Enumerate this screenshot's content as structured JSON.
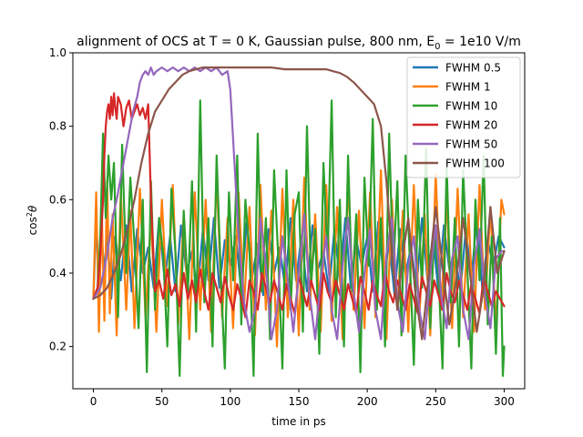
{
  "chart_data": {
    "type": "line",
    "title": "alignment of OCS at T = 0 K, Gaussian pulse, 800 nm, E",
    "title_subscript": "0",
    "title_suffix": " = 1e10 V/m",
    "xlabel": "time in ps",
    "ylabel": "cos",
    "ylabel_superscript": "2",
    "ylabel_symbol": "θ",
    "xlim": [
      -15,
      315
    ],
    "ylim": [
      0.085,
      1.0
    ],
    "xticks": [
      0,
      50,
      100,
      150,
      200,
      250,
      300
    ],
    "yticks": [
      0.2,
      0.4,
      0.6,
      0.8,
      1.0
    ],
    "xtick_labels": [
      "0",
      "50",
      "100",
      "150",
      "200",
      "250",
      "300"
    ],
    "ytick_labels": [
      "0.2",
      "0.4",
      "0.6",
      "0.8",
      "1.0"
    ],
    "grid": false,
    "legend_position": "top-right",
    "series": [
      {
        "name": "FWHM 0.5",
        "color": "#1f77b4",
        "x": [
          0,
          2,
          4,
          6,
          8,
          10,
          13,
          16,
          20,
          24,
          28,
          32,
          36,
          40,
          44,
          48,
          52,
          56,
          60,
          64,
          68,
          72,
          76,
          80,
          84,
          88,
          92,
          96,
          100,
          104,
          108,
          112,
          116,
          120,
          124,
          128,
          132,
          136,
          140,
          144,
          148,
          152,
          156,
          160,
          164,
          168,
          172,
          176,
          180,
          184,
          188,
          192,
          196,
          200,
          204,
          208,
          212,
          216,
          220,
          224,
          228,
          232,
          236,
          240,
          244,
          248,
          252,
          256,
          260,
          264,
          268,
          272,
          276,
          280,
          284,
          288,
          292,
          296,
          300
        ],
        "y": [
          0.33,
          0.55,
          0.36,
          0.5,
          0.4,
          0.52,
          0.33,
          0.5,
          0.38,
          0.53,
          0.35,
          0.52,
          0.4,
          0.47,
          0.36,
          0.55,
          0.38,
          0.5,
          0.35,
          0.53,
          0.4,
          0.46,
          0.35,
          0.52,
          0.38,
          0.55,
          0.36,
          0.49,
          0.42,
          0.5,
          0.35,
          0.54,
          0.39,
          0.48,
          0.34,
          0.52,
          0.4,
          0.47,
          0.36,
          0.55,
          0.38,
          0.5,
          0.35,
          0.53,
          0.41,
          0.46,
          0.35,
          0.52,
          0.38,
          0.55,
          0.36,
          0.49,
          0.42,
          0.5,
          0.35,
          0.54,
          0.39,
          0.48,
          0.34,
          0.52,
          0.4,
          0.47,
          0.36,
          0.55,
          0.38,
          0.5,
          0.35,
          0.53,
          0.41,
          0.46,
          0.35,
          0.52,
          0.38,
          0.55,
          0.36,
          0.49,
          0.42,
          0.5,
          0.47
        ]
      },
      {
        "name": "FWHM 1",
        "color": "#ff7f0e",
        "x": [
          0,
          2,
          4,
          6,
          8,
          10,
          12,
          14,
          17,
          20,
          24,
          27,
          30,
          34,
          38,
          42,
          46,
          50,
          54,
          58,
          62,
          66,
          70,
          74,
          78,
          82,
          86,
          90,
          94,
          98,
          102,
          106,
          110,
          114,
          118,
          122,
          126,
          130,
          134,
          138,
          142,
          146,
          150,
          154,
          158,
          162,
          166,
          170,
          174,
          178,
          182,
          186,
          190,
          194,
          198,
          202,
          206,
          210,
          214,
          218,
          222,
          226,
          230,
          234,
          238,
          242,
          246,
          250,
          254,
          258,
          262,
          266,
          270,
          274,
          278,
          282,
          286,
          290,
          294,
          298,
          300
        ],
        "y": [
          0.33,
          0.62,
          0.24,
          0.58,
          0.27,
          0.65,
          0.29,
          0.56,
          0.23,
          0.62,
          0.3,
          0.57,
          0.25,
          0.63,
          0.28,
          0.55,
          0.24,
          0.6,
          0.31,
          0.64,
          0.26,
          0.56,
          0.22,
          0.62,
          0.3,
          0.6,
          0.24,
          0.67,
          0.28,
          0.55,
          0.25,
          0.62,
          0.31,
          0.58,
          0.23,
          0.64,
          0.3,
          0.57,
          0.2,
          0.63,
          0.28,
          0.6,
          0.23,
          0.66,
          0.3,
          0.56,
          0.24,
          0.64,
          0.27,
          0.58,
          0.22,
          0.65,
          0.3,
          0.57,
          0.25,
          0.62,
          0.28,
          0.68,
          0.22,
          0.6,
          0.3,
          0.57,
          0.24,
          0.64,
          0.28,
          0.56,
          0.23,
          0.67,
          0.3,
          0.6,
          0.25,
          0.63,
          0.28,
          0.56,
          0.24,
          0.64,
          0.3,
          0.58,
          0.25,
          0.6,
          0.56
        ]
      },
      {
        "name": "FWHM 10",
        "color": "#2ca02c",
        "x": [
          0,
          3,
          5,
          7,
          9,
          11,
          13,
          15,
          18,
          21,
          24,
          27,
          30,
          33,
          36,
          39,
          42,
          45,
          48,
          51,
          54,
          57,
          60,
          63,
          66,
          69,
          72,
          75,
          78,
          81,
          84,
          87,
          90,
          93,
          96,
          99,
          102,
          105,
          108,
          111,
          114,
          117,
          120,
          123,
          126,
          129,
          132,
          135,
          138,
          141,
          144,
          147,
          150,
          153,
          156,
          159,
          162,
          165,
          168,
          171,
          174,
          177,
          180,
          183,
          186,
          189,
          192,
          195,
          198,
          201,
          204,
          207,
          210,
          213,
          216,
          219,
          222,
          225,
          228,
          231,
          234,
          237,
          240,
          243,
          246,
          249,
          252,
          255,
          258,
          261,
          264,
          267,
          270,
          273,
          276,
          279,
          282,
          285,
          288,
          291,
          294,
          297,
          299,
          300
        ],
        "y": [
          0.33,
          0.36,
          0.5,
          0.78,
          0.55,
          0.72,
          0.6,
          0.7,
          0.28,
          0.75,
          0.4,
          0.66,
          0.48,
          0.25,
          0.6,
          0.13,
          0.65,
          0.3,
          0.55,
          0.45,
          0.2,
          0.63,
          0.45,
          0.12,
          0.57,
          0.35,
          0.65,
          0.24,
          0.87,
          0.32,
          0.55,
          0.2,
          0.72,
          0.4,
          0.14,
          0.62,
          0.38,
          0.72,
          0.26,
          0.6,
          0.46,
          0.12,
          0.78,
          0.35,
          0.55,
          0.22,
          0.68,
          0.44,
          0.14,
          0.68,
          0.3,
          0.56,
          0.62,
          0.24,
          0.8,
          0.37,
          0.52,
          0.18,
          0.7,
          0.44,
          0.87,
          0.28,
          0.6,
          0.2,
          0.72,
          0.35,
          0.56,
          0.13,
          0.66,
          0.42,
          0.82,
          0.3,
          0.55,
          0.2,
          0.78,
          0.4,
          0.65,
          0.23,
          0.72,
          0.45,
          0.15,
          0.6,
          0.36,
          0.74,
          0.25,
          0.52,
          0.4,
          0.14,
          0.7,
          0.32,
          0.55,
          0.2,
          0.68,
          0.42,
          0.14,
          0.6,
          0.38,
          0.72,
          0.26,
          0.5,
          0.18,
          0.55,
          0.12,
          0.2
        ]
      },
      {
        "name": "FWHM 20",
        "color": "#d62728",
        "x": [
          0,
          3,
          5,
          7,
          8,
          9,
          10,
          11,
          12,
          13,
          14,
          15,
          16,
          17,
          18,
          20,
          22,
          24,
          26,
          28,
          30,
          32,
          34,
          36,
          38,
          40,
          42,
          45,
          48,
          51,
          54,
          57,
          60,
          63,
          66,
          69,
          72,
          75,
          78,
          81,
          84,
          87,
          90,
          93,
          96,
          99,
          102,
          105,
          108,
          111,
          114,
          117,
          120,
          123,
          126,
          129,
          132,
          135,
          138,
          141,
          144,
          147,
          150,
          153,
          156,
          159,
          162,
          165,
          168,
          171,
          174,
          177,
          180,
          183,
          186,
          189,
          192,
          195,
          198,
          201,
          204,
          207,
          210,
          213,
          216,
          219,
          222,
          225,
          228,
          231,
          234,
          237,
          240,
          243,
          246,
          249,
          252,
          255,
          258,
          261,
          264,
          267,
          270,
          273,
          276,
          279,
          282,
          285,
          288,
          291,
          294,
          297,
          300
        ],
        "y": [
          0.33,
          0.36,
          0.45,
          0.6,
          0.72,
          0.8,
          0.84,
          0.86,
          0.82,
          0.88,
          0.83,
          0.89,
          0.85,
          0.82,
          0.88,
          0.86,
          0.8,
          0.85,
          0.87,
          0.82,
          0.84,
          0.86,
          0.83,
          0.85,
          0.82,
          0.86,
          0.6,
          0.35,
          0.38,
          0.33,
          0.41,
          0.34,
          0.37,
          0.31,
          0.4,
          0.33,
          0.38,
          0.32,
          0.41,
          0.35,
          0.3,
          0.4,
          0.36,
          0.32,
          0.39,
          0.34,
          0.3,
          0.37,
          0.33,
          0.28,
          0.38,
          0.35,
          0.3,
          0.4,
          0.36,
          0.32,
          0.38,
          0.34,
          0.3,
          0.37,
          0.33,
          0.29,
          0.39,
          0.35,
          0.31,
          0.38,
          0.34,
          0.3,
          0.4,
          0.35,
          0.32,
          0.38,
          0.34,
          0.3,
          0.37,
          0.33,
          0.29,
          0.39,
          0.35,
          0.3,
          0.38,
          0.34,
          0.31,
          0.4,
          0.35,
          0.32,
          0.38,
          0.34,
          0.3,
          0.37,
          0.33,
          0.29,
          0.39,
          0.35,
          0.31,
          0.38,
          0.34,
          0.3,
          0.4,
          0.35,
          0.32,
          0.38,
          0.34,
          0.3,
          0.37,
          0.33,
          0.29,
          0.39,
          0.35,
          0.31,
          0.35,
          0.33,
          0.31
        ]
      },
      {
        "name": "FWHM 50",
        "color": "#9467bd",
        "x": [
          0,
          5,
          10,
          14,
          17,
          20,
          23,
          26,
          29,
          32,
          34,
          36,
          38,
          40,
          42,
          44,
          46,
          50,
          54,
          58,
          62,
          66,
          70,
          74,
          78,
          82,
          86,
          90,
          94,
          98,
          100,
          103,
          106,
          110,
          114,
          118,
          122,
          126,
          130,
          134,
          138,
          142,
          146,
          150,
          154,
          158,
          162,
          166,
          170,
          174,
          178,
          182,
          186,
          190,
          194,
          198,
          202,
          206,
          210,
          214,
          218,
          222,
          226,
          230,
          234,
          238,
          242,
          246,
          250,
          254,
          258,
          262,
          266,
          270,
          274,
          278,
          282,
          286,
          290,
          294,
          298,
          300
        ],
        "y": [
          0.33,
          0.36,
          0.45,
          0.55,
          0.6,
          0.66,
          0.72,
          0.78,
          0.84,
          0.88,
          0.92,
          0.94,
          0.95,
          0.94,
          0.96,
          0.94,
          0.95,
          0.96,
          0.95,
          0.96,
          0.95,
          0.96,
          0.95,
          0.96,
          0.95,
          0.96,
          0.95,
          0.96,
          0.94,
          0.95,
          0.9,
          0.7,
          0.5,
          0.32,
          0.24,
          0.3,
          0.55,
          0.42,
          0.22,
          0.3,
          0.5,
          0.38,
          0.24,
          0.4,
          0.56,
          0.34,
          0.22,
          0.38,
          0.5,
          0.3,
          0.22,
          0.42,
          0.55,
          0.35,
          0.24,
          0.4,
          0.52,
          0.3,
          0.22,
          0.45,
          0.55,
          0.32,
          0.24,
          0.42,
          0.5,
          0.3,
          0.22,
          0.4,
          0.53,
          0.34,
          0.25,
          0.44,
          0.5,
          0.3,
          0.22,
          0.42,
          0.52,
          0.34,
          0.25,
          0.44,
          0.46,
          0.46
        ]
      },
      {
        "name": "FWHM 100",
        "color": "#8c564b",
        "x": [
          0,
          5,
          10,
          15,
          20,
          25,
          30,
          35,
          40,
          45,
          50,
          55,
          60,
          65,
          70,
          75,
          80,
          85,
          90,
          95,
          100,
          110,
          120,
          130,
          140,
          150,
          160,
          170,
          175,
          180,
          185,
          190,
          195,
          200,
          205,
          210,
          214,
          218,
          222,
          226,
          230,
          235,
          240,
          245,
          250,
          255,
          260,
          265,
          270,
          275,
          280,
          285,
          290,
          295,
          300
        ],
        "y": [
          0.33,
          0.34,
          0.36,
          0.4,
          0.45,
          0.52,
          0.6,
          0.7,
          0.78,
          0.84,
          0.87,
          0.9,
          0.92,
          0.94,
          0.95,
          0.955,
          0.96,
          0.96,
          0.96,
          0.96,
          0.96,
          0.96,
          0.96,
          0.96,
          0.955,
          0.955,
          0.955,
          0.955,
          0.95,
          0.945,
          0.935,
          0.92,
          0.9,
          0.88,
          0.86,
          0.8,
          0.65,
          0.45,
          0.3,
          0.45,
          0.55,
          0.35,
          0.22,
          0.4,
          0.58,
          0.42,
          0.26,
          0.38,
          0.55,
          0.4,
          0.24,
          0.36,
          0.58,
          0.4,
          0.46
        ]
      }
    ]
  }
}
